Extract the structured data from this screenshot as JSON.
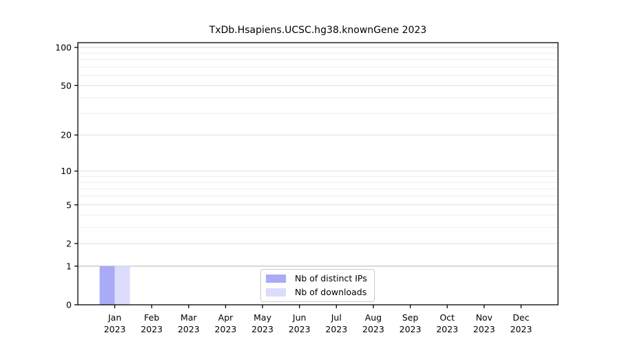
{
  "chart_data": {
    "type": "bar",
    "title": "TxDb.Hsapiens.UCSC.hg38.knownGene 2023",
    "categories": [
      "Jan",
      "Feb",
      "Mar",
      "Apr",
      "May",
      "Jun",
      "Jul",
      "Aug",
      "Sep",
      "Oct",
      "Nov",
      "Dec"
    ],
    "category_year": "2023",
    "series": [
      {
        "name": "Nb of distinct IPs",
        "color": "#a9abf6",
        "values": [
          1,
          0,
          0,
          0,
          0,
          0,
          0,
          0,
          0,
          0,
          0,
          0
        ]
      },
      {
        "name": "Nb of downloads",
        "color": "#dcddfb",
        "values": [
          1,
          0,
          0,
          0,
          0,
          0,
          0,
          0,
          0,
          0,
          0,
          0
        ]
      }
    ],
    "yscale": "log1p",
    "ylim": [
      0,
      109
    ],
    "yticks": [
      0,
      1,
      2,
      5,
      10,
      20,
      50,
      100
    ],
    "minor_gridlines": [
      3,
      4,
      6,
      7,
      8,
      9,
      30,
      40,
      60,
      70,
      80,
      90
    ],
    "grid": true,
    "legend_position": "bottom-center",
    "colors": {
      "major_gridline": "#dedede",
      "minor_gridline": "#eeeeee",
      "baseline_one_gridline": "#b2b2b2",
      "frame": "#000000"
    }
  }
}
